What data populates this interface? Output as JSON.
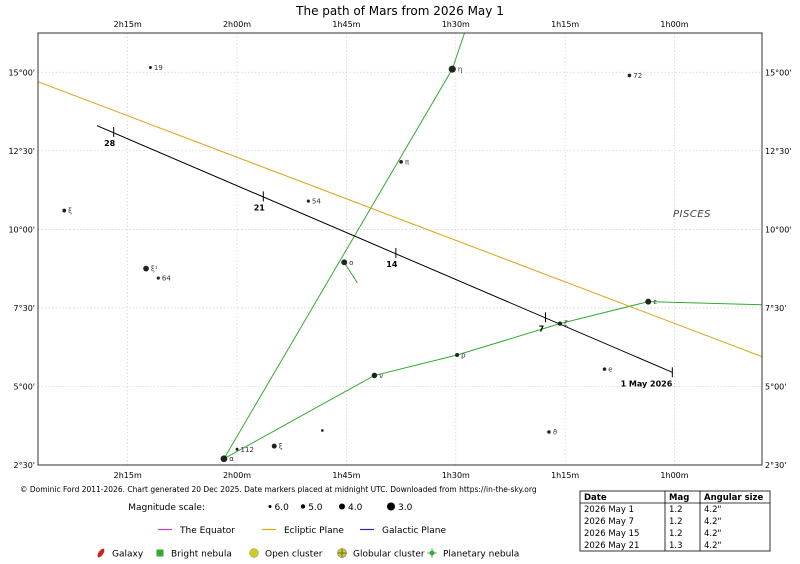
{
  "chart_data": {
    "type": "scatter",
    "title": "The path of Mars from 2026 May 1",
    "credit": "© Dominic Ford 2011-2026. Chart generated 20 Dec 2025. Date markers placed at midnight UTC. Downloaded from https://in-the-sky.org",
    "x_axis": {
      "reversed": true,
      "range_hours": [
        0.8,
        2.455
      ],
      "ticks": [
        {
          "value": 2.25,
          "label": "2h15m"
        },
        {
          "value": 2.0,
          "label": "2h00m"
        },
        {
          "value": 1.75,
          "label": "1h45m"
        },
        {
          "value": 1.5,
          "label": "1h30m"
        },
        {
          "value": 1.25,
          "label": "1h15m"
        },
        {
          "value": 1.0,
          "label": "1h00m"
        }
      ]
    },
    "y_axis": {
      "range_deg": [
        2.5,
        16.25
      ],
      "ticks": [
        {
          "value": 2.5,
          "label": "2°30'"
        },
        {
          "value": 5.0,
          "label": "5°00'"
        },
        {
          "value": 7.5,
          "label": "7°30'"
        },
        {
          "value": 10.0,
          "label": "10°00'"
        },
        {
          "value": 12.5,
          "label": "12°30'"
        },
        {
          "value": 15.0,
          "label": "15°00'"
        }
      ]
    },
    "grid": true,
    "constellation": {
      "label": "PISCES",
      "x": 0.96,
      "y": 10.4
    },
    "mars_path": [
      {
        "x": 1.005,
        "y": 5.45
      },
      {
        "x": 2.32,
        "y": 13.3
      }
    ],
    "date_markers": [
      {
        "label": "1 May 2026",
        "x": 1.005,
        "y": 5.45
      },
      {
        "label": "7",
        "x": 1.295,
        "y": 7.2
      },
      {
        "label": "14",
        "x": 1.637,
        "y": 9.25
      },
      {
        "label": "21",
        "x": 1.94,
        "y": 11.05
      },
      {
        "label": "28",
        "x": 2.282,
        "y": 13.1
      }
    ],
    "ecliptic": [
      {
        "x": 0.8,
        "y": 5.95
      },
      {
        "x": 2.455,
        "y": 14.7
      }
    ],
    "constellation_lines": [
      [
        {
          "x": 2.03,
          "y": 2.7
        },
        {
          "x": 1.508,
          "y": 15.1
        },
        {
          "x": 1.48,
          "y": 16.25
        }
      ],
      [
        {
          "x": 1.755,
          "y": 8.95
        },
        {
          "x": 1.725,
          "y": 8.3
        }
      ],
      [
        {
          "x": 2.03,
          "y": 2.7
        },
        {
          "x": 1.686,
          "y": 5.35
        },
        {
          "x": 1.497,
          "y": 6.0
        },
        {
          "x": 1.262,
          "y": 7.0
        },
        {
          "x": 1.06,
          "y": 7.7
        },
        {
          "x": 0.8,
          "y": 7.6
        }
      ]
    ],
    "stars": [
      {
        "name": "η",
        "x": 1.508,
        "y": 15.1,
        "mag": 3.6
      },
      {
        "name": "72",
        "x": 1.103,
        "y": 14.9,
        "mag": 5.6
      },
      {
        "name": "19",
        "x": 2.198,
        "y": 15.15,
        "mag": 6.0
      },
      {
        "name": "π",
        "x": 1.625,
        "y": 12.15,
        "mag": 5.6
      },
      {
        "name": "54",
        "x": 1.837,
        "y": 10.9,
        "mag": 5.9
      },
      {
        "name": "ξ",
        "x": 2.395,
        "y": 10.6,
        "mag": 5.5
      },
      {
        "name": "ο",
        "x": 1.755,
        "y": 8.95,
        "mag": 4.3
      },
      {
        "name": "ξ¹",
        "x": 2.208,
        "y": 8.75,
        "mag": 4.4
      },
      {
        "name": "64",
        "x": 2.18,
        "y": 8.45,
        "mag": 5.9
      },
      {
        "name": "ζ",
        "x": 1.262,
        "y": 7.0,
        "mag": 5.2
      },
      {
        "name": "ε",
        "x": 1.06,
        "y": 7.7,
        "mag": 4.3
      },
      {
        "name": "ρ",
        "x": 1.497,
        "y": 6.0,
        "mag": 5.4
      },
      {
        "name": "ν",
        "x": 1.686,
        "y": 5.35,
        "mag": 4.5
      },
      {
        "name": "e",
        "x": 1.16,
        "y": 5.55,
        "mag": 5.7
      },
      {
        "name": "ϑ",
        "x": 1.287,
        "y": 3.55,
        "mag": 5.7
      },
      {
        "name": "",
        "x": 1.805,
        "y": 3.6,
        "mag": 6.2
      },
      {
        "name": "ξ",
        "x": 1.915,
        "y": 3.1,
        "mag": 4.8
      },
      {
        "name": "112",
        "x": 2.0,
        "y": 3.0,
        "mag": 6.0
      },
      {
        "name": "α",
        "x": 2.03,
        "y": 2.7,
        "mag": 3.8
      }
    ]
  },
  "magnitude_scale": {
    "label": "Magnitude scale:",
    "items": [
      {
        "label": "6.0",
        "r": 1.5
      },
      {
        "label": "5.0",
        "r": 2.2
      },
      {
        "label": "4.0",
        "r": 3.0
      },
      {
        "label": "3.0",
        "r": 4.0
      }
    ]
  },
  "legend": {
    "lines": [
      {
        "label": "The Equator",
        "color": "#c43bc4"
      },
      {
        "label": "Ecliptic Plane",
        "color": "#d9a515"
      },
      {
        "label": "Galactic Plane",
        "color": "#2b2bb5"
      }
    ],
    "symbols": [
      {
        "label": "Galaxy",
        "color": "#cc2222",
        "icon": "galaxy-icon"
      },
      {
        "label": "Bright nebula",
        "color": "#33aa33",
        "icon": "bright-nebula-icon"
      },
      {
        "label": "Open cluster",
        "color": "#cccc22",
        "icon": "open-cluster-icon"
      },
      {
        "label": "Globular cluster",
        "color": "#cccc22",
        "icon": "globular-cluster-icon"
      },
      {
        "label": "Planetary nebula",
        "color": "#33aa33",
        "icon": "planetary-nebula-icon"
      }
    ]
  },
  "table": {
    "headers": [
      "Date",
      "Mag",
      "Angular size"
    ],
    "rows": [
      [
        "2026 May 1",
        "1.2",
        "4.2\""
      ],
      [
        "2026 May 7",
        "1.2",
        "4.2\""
      ],
      [
        "2026 May 15",
        "1.2",
        "4.2\""
      ],
      [
        "2026 May 21",
        "1.3",
        "4.2\""
      ]
    ]
  },
  "colors": {
    "grid": "#cfcfcf",
    "path": "#000000",
    "ecliptic": "#d9a515",
    "constellation_lines": "#33aa33",
    "stars": "#222222"
  }
}
